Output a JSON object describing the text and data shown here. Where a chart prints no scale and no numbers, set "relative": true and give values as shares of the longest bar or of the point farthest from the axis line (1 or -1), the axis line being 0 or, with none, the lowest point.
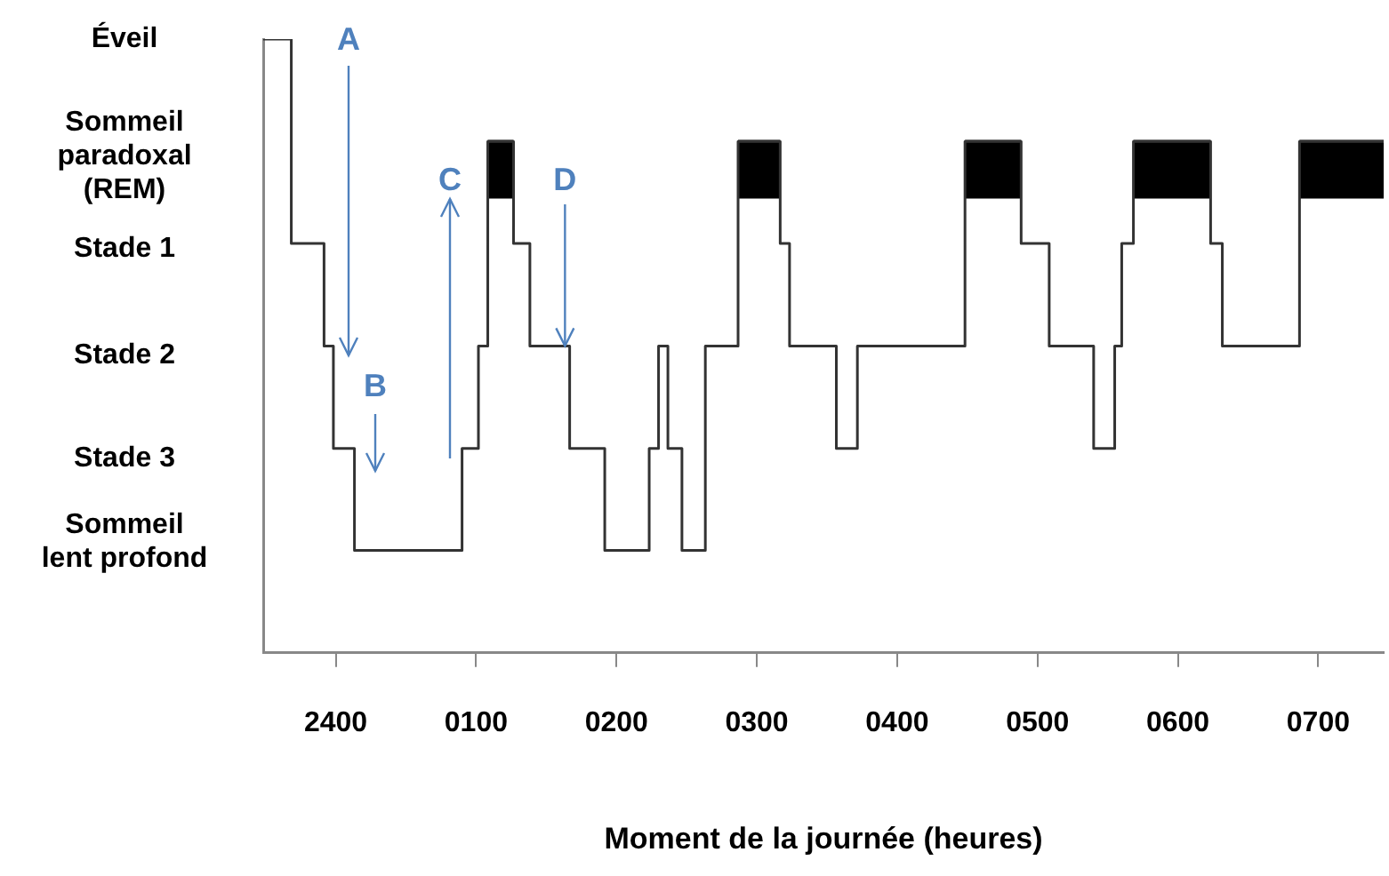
{
  "chart_data": {
    "type": "step",
    "xlabel": "Moment de la journée (heures)",
    "xlim": [
      "--01-01T23:29",
      "--01-02T07:28"
    ],
    "xticks": [
      {
        "value": "--01-02T00:00",
        "label": "2400"
      },
      {
        "value": "--01-02T01:00",
        "label": "0100"
      },
      {
        "value": "--01-02T02:00",
        "label": "0200"
      },
      {
        "value": "--01-02T03:00",
        "label": "0300"
      },
      {
        "value": "--01-02T04:00",
        "label": "0400"
      },
      {
        "value": "--01-02T05:00",
        "label": "0500"
      },
      {
        "value": "--01-02T06:00",
        "label": "0600"
      },
      {
        "value": "--01-02T07:00",
        "label": "0700"
      }
    ],
    "relative": true,
    "grid": false,
    "legend": false,
    "series": [
      {
        "color": "#333333",
        "x": [
          "--01-01T23:29",
          "--01-01T23:41",
          "--01-01T23:55",
          "--01-01T23:59",
          "--01-02T00:08",
          "--01-02T00:54",
          "--01-02T01:01",
          "--01-02T01:05",
          "--01-02T01:16",
          "--01-02T01:23",
          "--01-02T01:40",
          "--01-02T01:55",
          "--01-02T02:14",
          "--01-02T02:18",
          "--01-02T02:22",
          "--01-02T02:28",
          "--01-02T02:38",
          "--01-02T02:52",
          "--01-02T03:10",
          "--01-02T03:14",
          "--01-02T03:34",
          "--01-02T03:43",
          "--01-02T04:29",
          "--01-02T04:53",
          "--01-02T05:05",
          "--01-02T05:24",
          "--01-02T05:33",
          "--01-02T05:36",
          "--01-02T05:41",
          "--01-02T06:14",
          "--01-02T06:19",
          "--01-02T06:52",
          "--01-02T07:28"
        ],
        "values": [
          1,
          0.667,
          0.5,
          0.333,
          0.167,
          0.333,
          0.5,
          0.833,
          0.667,
          0.5,
          0.333,
          0.167,
          0.333,
          0.5,
          0.333,
          0.167,
          0.5,
          0.833,
          0.667,
          0.5,
          0.333,
          0.5,
          0.833,
          0.667,
          0.5,
          0.333,
          0.5,
          0.667,
          0.833,
          0.667,
          0.5,
          0.833,
          0.833
        ]
      },
      {
        "type": "step",
        "color": "#000000",
        "x": [
          "--01-02T01:05",
          "--01-02T01:16",
          "--01-02T02:00",
          "--01-02T02:52",
          "--01-02T03:10",
          "--01-02T04:00",
          "--01-02T04:29",
          "--01-02T04:53",
          "--01-02T05:18",
          "--01-02T05:41",
          "--01-02T06:14",
          "--01-02T06:30",
          "--01-02T06:52",
          "--01-02T07:28"
        ],
        "values": [
          0.788,
          0.788,
          null,
          0.788,
          0.788,
          null,
          0.788,
          0.788,
          null,
          0.788,
          0.788,
          null,
          0.788,
          0.788
        ]
      }
    ],
    "annotations": [
      "Éveil",
      "Sommeil paradoxal (REM)",
      "Stade 1",
      "Stade 2",
      "Stade 3",
      "Sommeil lent profond",
      "A",
      "B",
      "C",
      {
        "text": "D",
        "x": "--01-02T01:38",
        "y": 0.5
      }
    ]
  }
}
